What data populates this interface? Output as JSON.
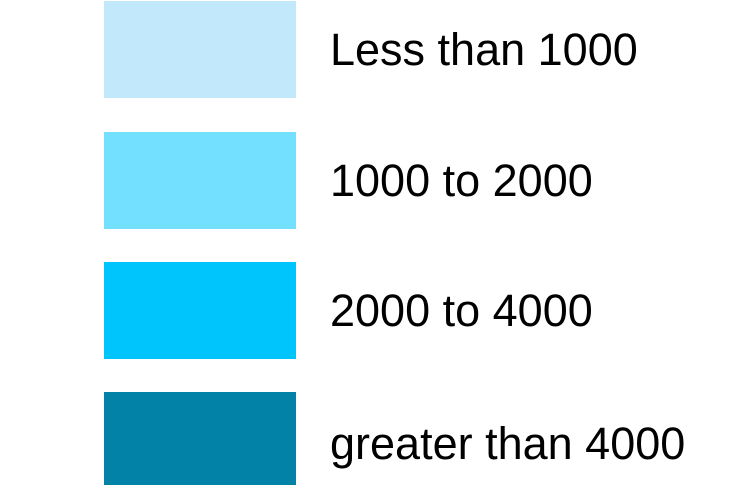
{
  "legend": {
    "items": [
      {
        "label": "Less than 1000",
        "color": "#c2e8fc"
      },
      {
        "label": "1000 to 2000",
        "color": "#72e0fe"
      },
      {
        "label": "2000 to 4000",
        "color": "#00c5fd"
      },
      {
        "label": "greater than 4000",
        "color": "#0282a6"
      }
    ]
  }
}
